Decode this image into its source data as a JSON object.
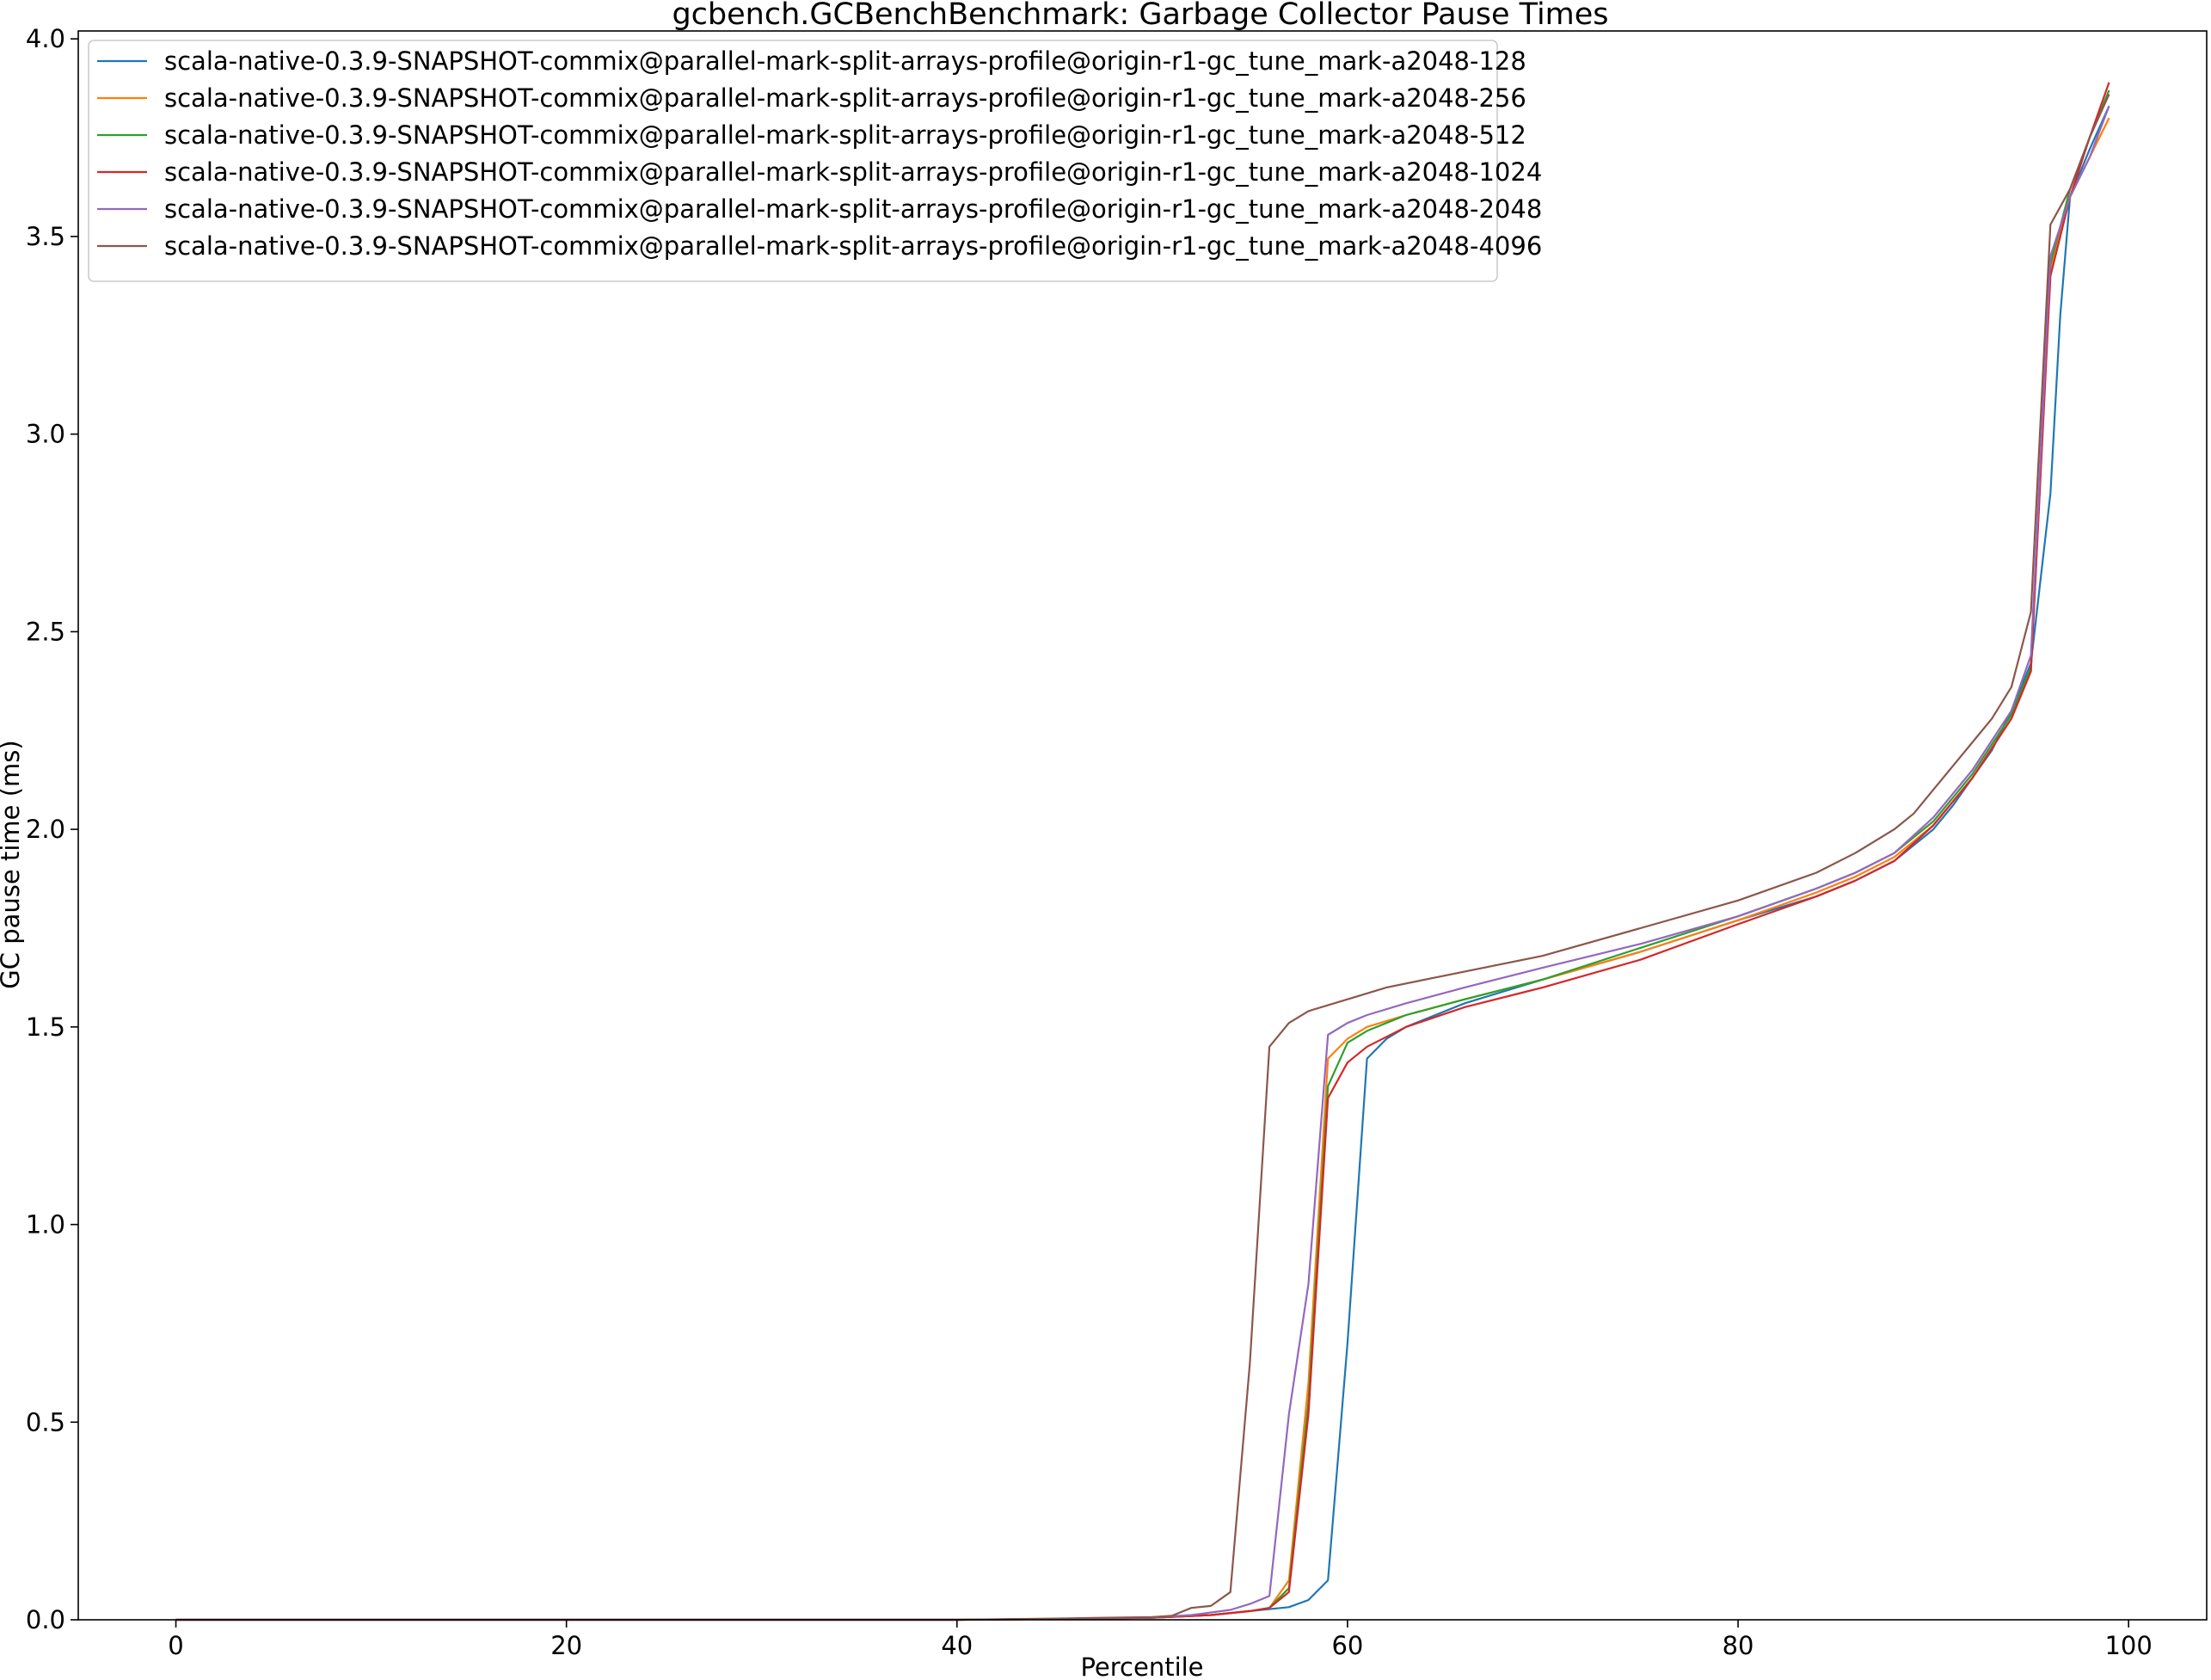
{
  "chart_data": {
    "type": "line",
    "title": "gcbench.GCBenchBenchmark: Garbage Collector Pause Times",
    "xlabel": "Percentile",
    "ylabel": "GC pause time (ms)",
    "xlim": [
      -5,
      104
    ],
    "ylim": [
      0,
      4.02
    ],
    "xticks": [
      0,
      20,
      40,
      60,
      80,
      100
    ],
    "yticks": [
      0.0,
      0.5,
      1.0,
      1.5,
      2.0,
      2.5,
      3.0,
      3.5,
      4.0
    ],
    "legend_position": "top-left",
    "grid": false,
    "series": [
      {
        "name": "scala-native-0.3.9-SNAPSHOT-commix@parallel-mark-split-arrays-profile@origin-r1-gc_tune_mark-a2048-128",
        "color": "#1f77b4",
        "points": [
          [
            0,
            0
          ],
          [
            40,
            0
          ],
          [
            45,
            0.002
          ],
          [
            50,
            0.005
          ],
          [
            53,
            0.012
          ],
          [
            55,
            0.022
          ],
          [
            57,
            0.032
          ],
          [
            58,
            0.05
          ],
          [
            59,
            0.1
          ],
          [
            60,
            0.7
          ],
          [
            61,
            1.42
          ],
          [
            62,
            1.47
          ],
          [
            63,
            1.5
          ],
          [
            66,
            1.56
          ],
          [
            70,
            1.62
          ],
          [
            75,
            1.69
          ],
          [
            80,
            1.77
          ],
          [
            84,
            1.83
          ],
          [
            86,
            1.87
          ],
          [
            88,
            1.92
          ],
          [
            90,
            2.0
          ],
          [
            91,
            2.06
          ],
          [
            93,
            2.2
          ],
          [
            94,
            2.3
          ],
          [
            95,
            2.42
          ],
          [
            96,
            2.85
          ],
          [
            96.5,
            3.3
          ],
          [
            97,
            3.6
          ],
          [
            98,
            3.72
          ],
          [
            99,
            3.83
          ]
        ]
      },
      {
        "name": "scala-native-0.3.9-SNAPSHOT-commix@parallel-mark-split-arrays-profile@origin-r1-gc_tune_mark-a2048-256",
        "color": "#ff7f0e",
        "points": [
          [
            0,
            0
          ],
          [
            40,
            0
          ],
          [
            45,
            0.002
          ],
          [
            50,
            0.005
          ],
          [
            53,
            0.012
          ],
          [
            55,
            0.022
          ],
          [
            56,
            0.03
          ],
          [
            57,
            0.1
          ],
          [
            58,
            0.6
          ],
          [
            59,
            1.42
          ],
          [
            60,
            1.47
          ],
          [
            61,
            1.5
          ],
          [
            63,
            1.53
          ],
          [
            66,
            1.57
          ],
          [
            70,
            1.62
          ],
          [
            75,
            1.69
          ],
          [
            80,
            1.77
          ],
          [
            84,
            1.84
          ],
          [
            86,
            1.88
          ],
          [
            88,
            1.93
          ],
          [
            90,
            2.01
          ],
          [
            92,
            2.13
          ],
          [
            94,
            2.28
          ],
          [
            95,
            2.4
          ],
          [
            96,
            3.42
          ],
          [
            97,
            3.6
          ],
          [
            98,
            3.7
          ],
          [
            99,
            3.8
          ]
        ]
      },
      {
        "name": "scala-native-0.3.9-SNAPSHOT-commix@parallel-mark-split-arrays-profile@origin-r1-gc_tune_mark-a2048-512",
        "color": "#2ca02c",
        "points": [
          [
            0,
            0
          ],
          [
            40,
            0
          ],
          [
            45,
            0.002
          ],
          [
            50,
            0.005
          ],
          [
            53,
            0.012
          ],
          [
            55,
            0.022
          ],
          [
            56,
            0.03
          ],
          [
            57,
            0.08
          ],
          [
            58,
            0.55
          ],
          [
            59,
            1.35
          ],
          [
            60,
            1.46
          ],
          [
            61,
            1.49
          ],
          [
            63,
            1.53
          ],
          [
            66,
            1.57
          ],
          [
            70,
            1.62
          ],
          [
            75,
            1.7
          ],
          [
            80,
            1.78
          ],
          [
            84,
            1.85
          ],
          [
            86,
            1.89
          ],
          [
            88,
            1.94
          ],
          [
            90,
            2.02
          ],
          [
            92,
            2.14
          ],
          [
            94,
            2.29
          ],
          [
            95,
            2.41
          ],
          [
            96,
            3.43
          ],
          [
            97,
            3.62
          ],
          [
            98,
            3.75
          ],
          [
            99,
            3.87
          ]
        ]
      },
      {
        "name": "scala-native-0.3.9-SNAPSHOT-commix@parallel-mark-split-arrays-profile@origin-r1-gc_tune_mark-a2048-1024",
        "color": "#d62728",
        "points": [
          [
            0,
            0
          ],
          [
            40,
            0
          ],
          [
            45,
            0.002
          ],
          [
            50,
            0.005
          ],
          [
            53,
            0.012
          ],
          [
            55,
            0.022
          ],
          [
            56,
            0.03
          ],
          [
            57,
            0.07
          ],
          [
            58,
            0.52
          ],
          [
            59,
            1.32
          ],
          [
            60,
            1.41
          ],
          [
            61,
            1.45
          ],
          [
            63,
            1.5
          ],
          [
            66,
            1.55
          ],
          [
            70,
            1.6
          ],
          [
            75,
            1.67
          ],
          [
            80,
            1.76
          ],
          [
            84,
            1.83
          ],
          [
            86,
            1.87
          ],
          [
            88,
            1.92
          ],
          [
            90,
            2.01
          ],
          [
            92,
            2.13
          ],
          [
            94,
            2.28
          ],
          [
            95,
            2.4
          ],
          [
            96,
            3.4
          ],
          [
            97,
            3.6
          ],
          [
            98,
            3.75
          ],
          [
            99,
            3.89
          ]
        ]
      },
      {
        "name": "scala-native-0.3.9-SNAPSHOT-commix@parallel-mark-split-arrays-profile@origin-r1-gc_tune_mark-a2048-2048",
        "color": "#9467bd",
        "points": [
          [
            0,
            0
          ],
          [
            40,
            0
          ],
          [
            45,
            0.002
          ],
          [
            50,
            0.006
          ],
          [
            52,
            0.012
          ],
          [
            54,
            0.025
          ],
          [
            55,
            0.04
          ],
          [
            56,
            0.06
          ],
          [
            57,
            0.52
          ],
          [
            58,
            0.85
          ],
          [
            59,
            1.48
          ],
          [
            60,
            1.51
          ],
          [
            61,
            1.53
          ],
          [
            63,
            1.56
          ],
          [
            66,
            1.6
          ],
          [
            70,
            1.65
          ],
          [
            75,
            1.71
          ],
          [
            80,
            1.78
          ],
          [
            84,
            1.85
          ],
          [
            86,
            1.89
          ],
          [
            88,
            1.94
          ],
          [
            90,
            2.03
          ],
          [
            92,
            2.15
          ],
          [
            94,
            2.3
          ],
          [
            95,
            2.44
          ],
          [
            96,
            3.45
          ],
          [
            97,
            3.6
          ],
          [
            98,
            3.7
          ],
          [
            99,
            3.83
          ]
        ]
      },
      {
        "name": "scala-native-0.3.9-SNAPSHOT-commix@parallel-mark-split-arrays-profile@origin-r1-gc_tune_mark-a2048-4096",
        "color": "#8c564b",
        "points": [
          [
            0,
            0
          ],
          [
            40,
            0
          ],
          [
            45,
            0.003
          ],
          [
            50,
            0.007
          ],
          [
            51,
            0.01
          ],
          [
            52,
            0.03
          ],
          [
            53,
            0.035
          ],
          [
            54,
            0.07
          ],
          [
            55,
            0.65
          ],
          [
            56,
            1.45
          ],
          [
            57,
            1.51
          ],
          [
            58,
            1.54
          ],
          [
            60,
            1.57
          ],
          [
            62,
            1.6
          ],
          [
            65,
            1.63
          ],
          [
            70,
            1.68
          ],
          [
            75,
            1.75
          ],
          [
            80,
            1.82
          ],
          [
            84,
            1.89
          ],
          [
            86,
            1.94
          ],
          [
            88,
            2.0
          ],
          [
            89,
            2.04
          ],
          [
            90,
            2.1
          ],
          [
            92,
            2.22
          ],
          [
            93,
            2.28
          ],
          [
            94,
            2.36
          ],
          [
            95,
            2.55
          ],
          [
            96,
            3.53
          ],
          [
            97,
            3.62
          ],
          [
            98,
            3.75
          ],
          [
            99,
            3.86
          ]
        ]
      }
    ]
  }
}
